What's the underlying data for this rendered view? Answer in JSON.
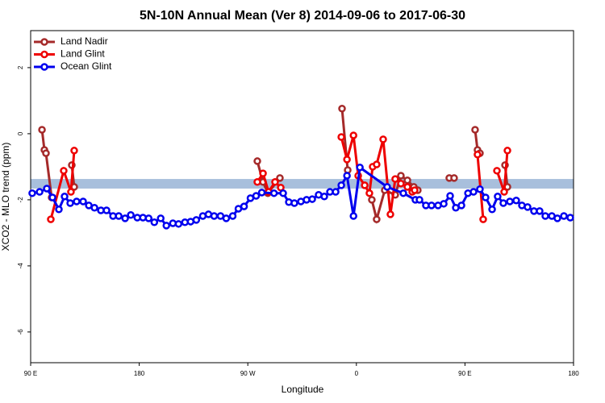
{
  "chart_data": {
    "type": "line",
    "title": "5N-10N Annual Mean (Ver 8)   2014-09-06 to 2017-06-30",
    "xlabel": "Longitude",
    "ylabel": "XCO2 - MLO trend (ppm)",
    "xlim": [
      90,
      540
    ],
    "ylim": [
      -6.93,
      3.12
    ],
    "xticks": [
      {
        "value": 90,
        "label": "90 E"
      },
      {
        "value": 180,
        "label": "180"
      },
      {
        "value": 270,
        "label": "90 W"
      },
      {
        "value": 360,
        "label": "0"
      },
      {
        "value": 450,
        "label": "90 E"
      },
      {
        "value": 540,
        "label": "180"
      }
    ],
    "yticks": [
      -6,
      -4,
      -2,
      0,
      2
    ],
    "reference_band": [
      -1.66,
      -1.37
    ],
    "band_color": "#a8bfdc",
    "legend": "top-left",
    "series": [
      {
        "name": "Land Nadir",
        "color": "#a52a2a",
        "x": [
          99.4,
          101.4,
          102.7,
          107.4,
          null,
          124.1,
          126.1,
          null,
          277.9,
          282.6,
          286.6,
          296.6,
          null,
          348.1,
          352.8,
          null,
          372.8,
          376.8,
          383.5,
          392.2,
          396.9,
          402.3,
          407.6,
          410.9,
          null,
          437.0,
          441.0,
          null,
          458.4,
          460.4,
          462.4,
          null,
          483.2,
          485.2
        ],
        "values": [
          0.12,
          -0.49,
          -0.59,
          -1.93,
          null,
          -0.95,
          -1.61,
          null,
          -0.83,
          -1.46,
          -1.8,
          -1.34,
          null,
          0.76,
          -1.1,
          null,
          -2.0,
          -2.59,
          -1.71,
          -1.85,
          -1.27,
          -1.41,
          -1.61,
          -1.71,
          null,
          -1.34,
          -1.34,
          null,
          0.12,
          -0.49,
          -0.59,
          null,
          -0.95,
          -1.61
        ]
      },
      {
        "name": "Land Glint",
        "color": "#ee0000",
        "x": [
          106.7,
          117.4,
          123.4,
          126.1,
          null,
          277.9,
          282.6,
          287.2,
          292.6,
          297.3,
          null,
          347.5,
          352.2,
          357.6,
          361.5,
          366.9,
          370.8,
          373.5,
          376.8,
          382.2,
          388.2,
          392.2,
          396.9,
          402.3,
          406.3,
          408.3,
          null,
          460.4,
          465.1,
          null,
          476.5,
          482.5,
          485.2
        ],
        "values": [
          -2.59,
          -1.12,
          -1.76,
          -0.51,
          null,
          -1.46,
          -1.2,
          -1.76,
          -1.46,
          -1.63,
          null,
          -0.1,
          -0.78,
          -0.05,
          -1.27,
          -1.56,
          -1.8,
          -1.0,
          -0.93,
          -0.17,
          -2.44,
          -1.37,
          -1.51,
          -1.61,
          -1.76,
          -1.71,
          null,
          -0.63,
          -2.59,
          null,
          -1.12,
          -1.76,
          -0.51
        ]
      },
      {
        "name": "Ocean Glint",
        "color": "#0000ee",
        "x": [
          91.3,
          97.4,
          103.4,
          108.1,
          113.4,
          118.1,
          122.8,
          128.1,
          133.5,
          138.2,
          142.9,
          148.2,
          152.9,
          158.3,
          163.0,
          168.3,
          173.0,
          178.4,
          183.1,
          187.8,
          192.5,
          197.8,
          202.5,
          207.9,
          212.6,
          217.9,
          222.6,
          227.3,
          232.7,
          237.4,
          242.1,
          247.4,
          252.1,
          257.5,
          262.2,
          266.9,
          272.2,
          276.9,
          281.6,
          291.7,
          299.3,
          304.0,
          308.6,
          314.0,
          318.7,
          323.4,
          328.7,
          333.4,
          338.1,
          342.8,
          347.5,
          352.2,
          357.6,
          362.9,
          385.5,
          398.9,
          408.9,
          412.3,
          417.6,
          422.3,
          427.7,
          432.4,
          437.7,
          442.4,
          447.1,
          452.5,
          457.1,
          462.4,
          467.1,
          472.5,
          477.1,
          481.8,
          487.2,
          492.5,
          497.2,
          501.9,
          507.2,
          511.9,
          516.6,
          522.0,
          526.6,
          532.0,
          537.3
        ],
        "values": [
          -1.8,
          -1.76,
          -1.66,
          -1.93,
          -2.29,
          -1.9,
          -2.1,
          -2.05,
          -2.05,
          -2.17,
          -2.24,
          -2.32,
          -2.32,
          -2.49,
          -2.49,
          -2.56,
          -2.46,
          -2.54,
          -2.54,
          -2.56,
          -2.68,
          -2.56,
          -2.78,
          -2.71,
          -2.73,
          -2.68,
          -2.66,
          -2.61,
          -2.49,
          -2.44,
          -2.49,
          -2.49,
          -2.56,
          -2.49,
          -2.27,
          -2.2,
          -1.95,
          -1.88,
          -1.78,
          -1.8,
          -1.8,
          -2.07,
          -2.1,
          -2.05,
          -2.0,
          -1.98,
          -1.85,
          -1.9,
          -1.76,
          -1.76,
          -1.56,
          -1.27,
          -2.49,
          -1.02,
          -1.61,
          -1.8,
          -2.0,
          -2.0,
          -2.17,
          -2.17,
          -2.17,
          -2.12,
          -1.88,
          -2.24,
          -2.17,
          -1.8,
          -1.76,
          -1.68,
          -1.93,
          -2.29,
          -1.9,
          -2.1,
          -2.05,
          -2.02,
          -2.17,
          -2.22,
          -2.34,
          -2.34,
          -2.49,
          -2.49,
          -2.56,
          -2.49,
          -2.54
        ]
      }
    ]
  }
}
